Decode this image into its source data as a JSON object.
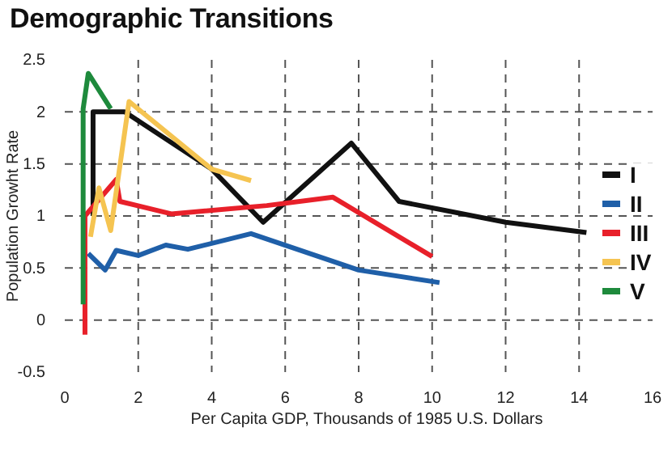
{
  "chart_data": {
    "type": "line",
    "title": "Demographic Transitions",
    "xlabel": "Per Capita GDP, Thousands of 1985 U.S. Dollars",
    "ylabel": "Population Growht Rate",
    "xlim": [
      0,
      16
    ],
    "xticks": [
      0,
      2,
      4,
      6,
      8,
      10,
      12,
      14,
      16
    ],
    "ylim": [
      -0.5,
      2.5
    ],
    "yticks": [
      -0.5,
      0,
      0.5,
      1,
      1.5,
      2,
      2.5
    ],
    "grid": true,
    "legend": "right",
    "line_style": "solid",
    "marker": "none",
    "series": [
      {
        "name": "I",
        "color": "#111111",
        "x": [
          0.77,
          0.77,
          1.63,
          4.0,
          5.4,
          7.8,
          9.1,
          12,
          14.2
        ],
        "values": [
          1.0,
          2.0,
          2.0,
          1.45,
          0.94,
          1.7,
          1.14,
          0.94,
          0.84
        ]
      },
      {
        "name": "II",
        "color": "#1f5fa8",
        "x": [
          0.64,
          1.1,
          1.4,
          2.0,
          2.75,
          3.35,
          5.07,
          8.0,
          10.2
        ],
        "values": [
          0.64,
          0.48,
          0.67,
          0.62,
          0.72,
          0.68,
          0.83,
          0.48,
          0.36
        ]
      },
      {
        "name": "III",
        "color": "#e8202a",
        "x": [
          0.55,
          0.55,
          1.4,
          1.5,
          2.9,
          5.5,
          7.3,
          10.0
        ],
        "values": [
          -0.14,
          1.0,
          1.35,
          1.14,
          1.02,
          1.1,
          1.18,
          0.61
        ]
      },
      {
        "name": "IV",
        "color": "#f5c451",
        "x": [
          0.7,
          0.93,
          1.25,
          1.75,
          4.0,
          5.07
        ],
        "values": [
          0.8,
          1.27,
          0.86,
          2.1,
          1.45,
          1.34
        ]
      },
      {
        "name": "V",
        "color": "#1e8a3c",
        "x": [
          0.5,
          0.5,
          0.64,
          1.25
        ],
        "values": [
          0.15,
          2.03,
          2.37,
          2.03
        ]
      }
    ]
  }
}
